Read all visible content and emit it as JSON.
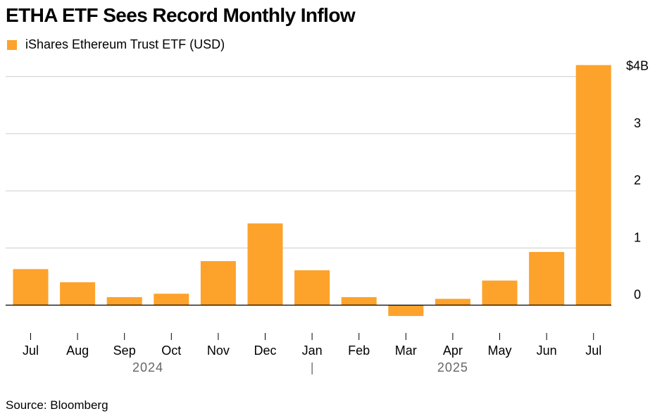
{
  "title": "ETHA ETF Sees Record Monthly Inflow",
  "source": "Source: Bloomberg",
  "colors": {
    "bar": "#fda22b",
    "grid": "#cccccc",
    "axis": "#000000",
    "year_label": "#666666"
  },
  "chart_data": {
    "type": "bar",
    "categories": [
      "Jul",
      "Aug",
      "Sep",
      "Oct",
      "Nov",
      "Dec",
      "Jan",
      "Feb",
      "Mar",
      "Apr",
      "May",
      "Jun",
      "Jul"
    ],
    "series": [
      {
        "name": "iShares Ethereum Trust ETF (USD)",
        "values": [
          0.63,
          0.4,
          0.14,
          0.2,
          0.77,
          1.43,
          0.61,
          0.14,
          -0.19,
          0.11,
          0.43,
          0.93,
          4.2
        ]
      }
    ],
    "y_ticks": [
      {
        "value": 4,
        "label": "$4B"
      },
      {
        "value": 3,
        "label": "3"
      },
      {
        "value": 2,
        "label": "2"
      },
      {
        "value": 1,
        "label": "1"
      },
      {
        "value": 0,
        "label": "0"
      }
    ],
    "ylim": [
      -0.3,
      4.2
    ],
    "years": [
      {
        "label": "2024",
        "first_index": 0,
        "last_index": 5
      },
      {
        "label": "2025",
        "first_index": 6,
        "last_index": 12
      }
    ],
    "year_separator_before_index": 6,
    "xlabel": "",
    "ylabel": "",
    "grid": true
  }
}
